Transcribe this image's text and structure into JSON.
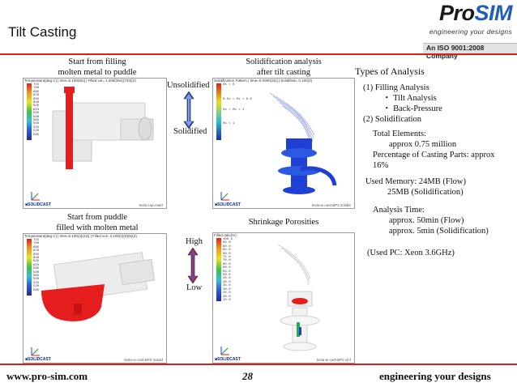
{
  "header": {
    "title": "Tilt Casting",
    "logo_pro": "Pro",
    "logo_sim": "SIM",
    "logo_tagline": "engineering your designs",
    "iso": "An ISO 9001:2008 Company"
  },
  "panels": {
    "top_left": {
      "caption": [
        "Start from filling",
        "molten metal to puddle"
      ],
      "header_text": "Temperature[deg C] | time=0.100(8)s] | Filled vol= 1.408(354)(733)(2)",
      "legend_values": "715\n700\n685\n670\n655\n640\n625\n610\n595\n580\n565\n550\n535\n520\n505",
      "foot_left": "■SOLIDCAST",
      "foot_right": "tesla-cup.matrl"
    },
    "top_right": {
      "caption": [
        "Solidification analysis",
        "after tilt casting"
      ],
      "header_text": "Solidification Pattern | time=0.0000(3)s] | Solidified= 0.100(3)",
      "legend_values": "0s < 0\n\n\n\n0.5s < 0s < 0.5\n\n\n0s < 0s < 1\n\n\n\n0s < 1",
      "foot_left": "■SOLIDCAST",
      "foot_right": "tesla-w-cast-BP2 solidfe"
    },
    "bottom_left": {
      "caption": [
        "Start from puddle",
        "filled with molten metal"
      ],
      "header_text": "Temperature[deg C] | time=0.100(4)(2)s] | Filled vol= 0.100(2)(0)(5)(2)",
      "legend_values": "715\n700\n685\n670\n655\n640\n625\n610\n595\n580\n565\n550\n535\n520\n505",
      "foot_left": "■SOLIDCAST",
      "foot_right": "tesla-w-cast-BP2 mat3d"
    },
    "bottom_right": {
      "caption": [
        "Shrinkage Porosities"
      ],
      "header_text": "Filled ratio(%)",
      "legend_values": "100.0\n95.0\n90.0\n85.0\n80.0\n75.0\n70.0\n65.0\n60.0\n55.0\n50.0\n45.0\n40.0\n35.0\n30.0\n25.0\n20.0\n15.0",
      "foot_left": "■SOLIDCAST",
      "foot_right": "tesla-w-cast-BP2 vfcf"
    }
  },
  "scale_labels": {
    "unsolidified": "Unsolidified",
    "solidified": "Solidified",
    "high": "High",
    "low": "Low"
  },
  "analysis": {
    "heading": "Types of Analysis",
    "item1": "(1) Filling Analysis",
    "bullet1": "Tilt Analysis",
    "bullet2": "Back-Pressure",
    "item2": "(2) Solidification",
    "elements_label": "Total Elements:",
    "elements_value": "approx 0.75 million",
    "percentage_line1": "Percentage of Casting Parts: approx",
    "percentage_line2": "16%",
    "memory_line1": "Used Memory: 24MB (Flow)",
    "memory_line2": "25MB (Solidification)",
    "time_label": "Analysis Time:",
    "time_flow": "approx. 50min (Flow)",
    "time_solid": "approx. 5min (Solidification)",
    "pc": "(Used PC: Xeon 3.6GHz)"
  },
  "footer": {
    "website": "www.pro-sim.com",
    "page": "28",
    "tagline": "engineering your designs"
  },
  "colors": {
    "accent_red": "#d51f1f",
    "brand_blue": "#1f5fb5",
    "arrow_blue": "#3a4fb8",
    "arrow_red": "#b0283a"
  }
}
